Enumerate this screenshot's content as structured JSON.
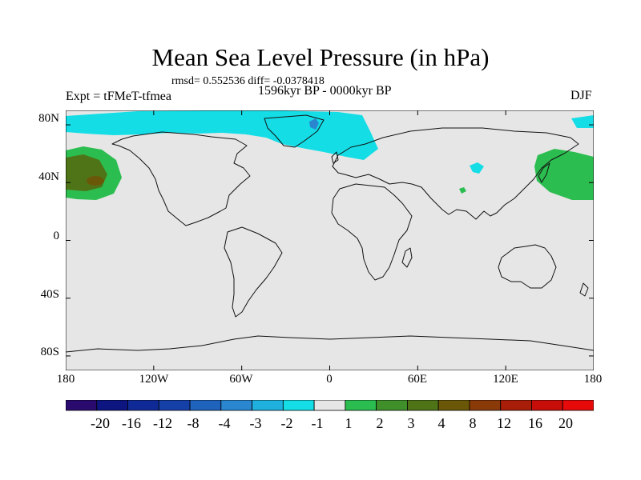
{
  "header": {
    "title": "Mean Sea Level Pressure (in hPa)",
    "stats": "rmsd= 0.552536 diff= -0.0378418",
    "period": "1596kyr BP - 0000kyr BP",
    "experiment": "Expt = tFMeT-tfmea",
    "season": "DJF"
  },
  "axes": {
    "y_labels": [
      "80N",
      "40N",
      "0",
      "40S",
      "80S"
    ],
    "x_labels": [
      "180",
      "120W",
      "60W",
      "0",
      "60E",
      "120E",
      "180"
    ]
  },
  "colorbar": {
    "labels": [
      "-20",
      "-16",
      "-12",
      "-8",
      "-4",
      "-3",
      "-2",
      "-1",
      "1",
      "2",
      "3",
      "4",
      "8",
      "12",
      "16",
      "20"
    ],
    "colors": [
      "#2a0a6e",
      "#0c1580",
      "#0f2a96",
      "#1540a8",
      "#1f63bd",
      "#2a86cf",
      "#1fb0dd",
      "#14dde6",
      "#e6e6e6",
      "#2bbd4f",
      "#3f8f2a",
      "#4f7418",
      "#6a5808",
      "#8a3a08",
      "#a81e08",
      "#c80e08",
      "#e60a0a"
    ]
  },
  "palette": {
    "ocean": "#e6e6e6",
    "coast": "#111111",
    "cyan": "#14dde6",
    "mid_blue": "#2a86cf",
    "green": "#2bbd4f",
    "olive": "#4f7418",
    "brown": "#6a5808"
  }
}
